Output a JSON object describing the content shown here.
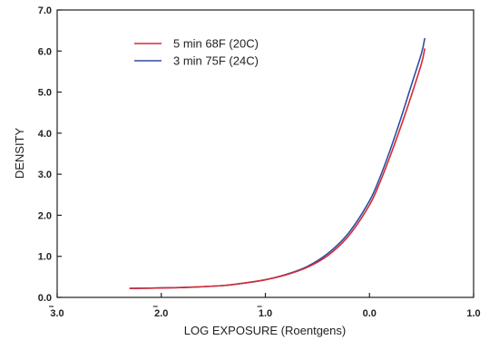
{
  "chart_data": {
    "type": "line",
    "xlabel": "LOG EXPOSURE (Roentgens)",
    "ylabel": "DENSITY",
    "xlim": [
      -3.0,
      1.0
    ],
    "ylim": [
      0.0,
      7.0
    ],
    "x_ticks": [
      {
        "value": -3.0,
        "label": "3.0",
        "bar": true
      },
      {
        "value": -2.0,
        "label": "2.0",
        "bar": true
      },
      {
        "value": -1.0,
        "label": "1.0",
        "bar": true
      },
      {
        "value": 0.0,
        "label": "0.0",
        "bar": false
      },
      {
        "value": 1.0,
        "label": "1.0",
        "bar": false
      }
    ],
    "y_ticks": [
      {
        "value": 0.0,
        "label": "0.0"
      },
      {
        "value": 1.0,
        "label": "1.0"
      },
      {
        "value": 2.0,
        "label": "2.0"
      },
      {
        "value": 3.0,
        "label": "3.0"
      },
      {
        "value": 4.0,
        "label": "4.0"
      },
      {
        "value": 5.0,
        "label": "5.0"
      },
      {
        "value": 6.0,
        "label": "6.0"
      },
      {
        "value": 7.0,
        "label": "7.0"
      }
    ],
    "grid": false,
    "legend_position": "top-left",
    "series": [
      {
        "name": "5 min 68F (20C)",
        "color": "#d62a36",
        "x": [
          -2.3,
          -2.0,
          -1.7,
          -1.4,
          -1.2,
          -1.0,
          -0.8,
          -0.6,
          -0.4,
          -0.2,
          0.0,
          0.1,
          0.2,
          0.3,
          0.4,
          0.5,
          0.53
        ],
        "y": [
          0.22,
          0.23,
          0.25,
          0.29,
          0.35,
          0.43,
          0.55,
          0.73,
          1.02,
          1.5,
          2.25,
          2.8,
          3.45,
          4.15,
          4.9,
          5.7,
          6.05
        ]
      },
      {
        "name": "3 min 75F (24C)",
        "color": "#2c4fa0",
        "x": [
          -2.3,
          -2.0,
          -1.7,
          -1.4,
          -1.2,
          -1.0,
          -0.8,
          -0.6,
          -0.4,
          -0.2,
          0.0,
          0.1,
          0.2,
          0.3,
          0.4,
          0.5,
          0.53
        ],
        "y": [
          0.22,
          0.23,
          0.25,
          0.29,
          0.35,
          0.43,
          0.56,
          0.75,
          1.07,
          1.57,
          2.35,
          2.92,
          3.6,
          4.35,
          5.15,
          5.95,
          6.3
        ]
      }
    ]
  }
}
